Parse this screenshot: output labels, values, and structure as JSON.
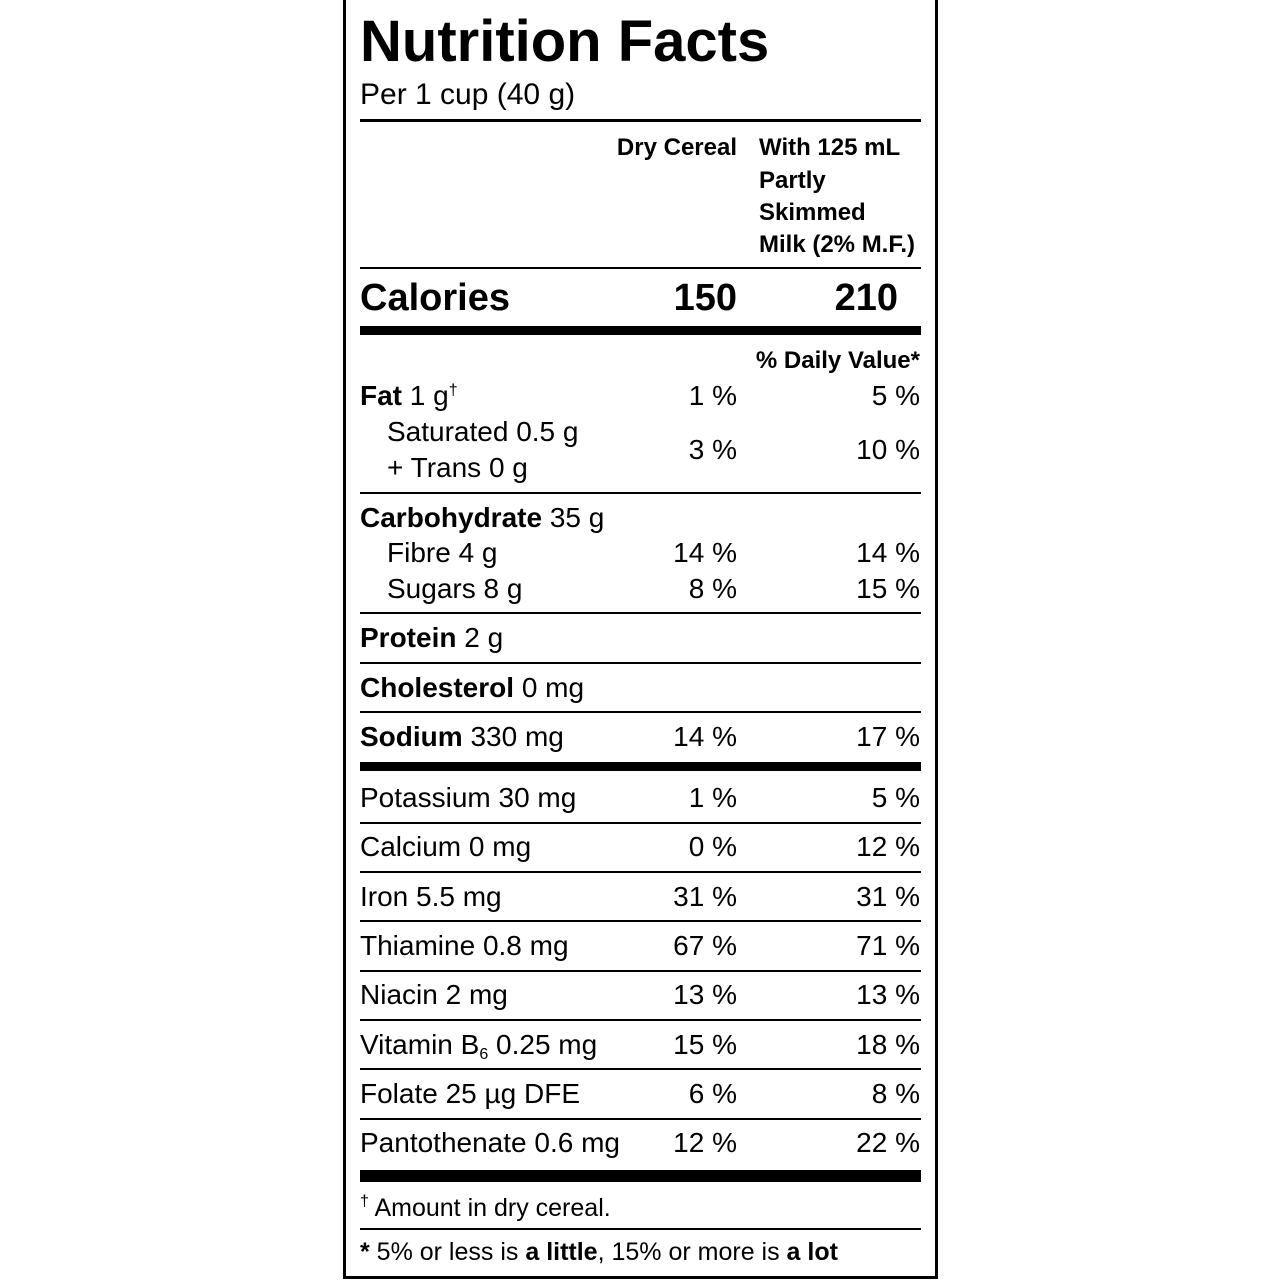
{
  "title": "Nutrition Facts",
  "serving": "Per 1 cup (40 g)",
  "columns": {
    "col1": "Dry Cereal",
    "col2_lines": [
      "With 125 mL",
      "Partly",
      "Skimmed",
      "Milk (2% M.F.)"
    ]
  },
  "calories": {
    "label": "Calories",
    "dry": "150",
    "milk": "210"
  },
  "daily_value_header": "% Daily Value*",
  "nutrients": {
    "fat": {
      "name": "Fat",
      "amount": "1 g",
      "mark": "†",
      "dry": "1 %",
      "milk": "5 %"
    },
    "saturated": {
      "name": "Saturated 0.5 g",
      "name2": "+ Trans 0 g",
      "dry": "3 %",
      "milk": "10 %"
    },
    "carbohydrate": {
      "name": "Carbohydrate",
      "amount": "35 g"
    },
    "fibre": {
      "name": "Fibre 4 g",
      "dry": "14 %",
      "milk": "14 %"
    },
    "sugars": {
      "name": "Sugars 8 g",
      "dry": "8 %",
      "milk": "15 %"
    },
    "protein": {
      "name": "Protein",
      "amount": "2 g"
    },
    "cholesterol": {
      "name": "Cholesterol",
      "amount": "0 mg"
    },
    "sodium": {
      "name": "Sodium",
      "amount": "330 mg",
      "dry": "14 %",
      "milk": "17 %"
    }
  },
  "micros": [
    {
      "name": "Potassium 30 mg",
      "dry": "1 %",
      "milk": "5 %"
    },
    {
      "name": "Calcium 0 mg",
      "dry": "0 %",
      "milk": "12 %"
    },
    {
      "name": "Iron 5.5 mg",
      "dry": "31 %",
      "milk": "31 %"
    },
    {
      "name": "Thiamine 0.8 mg",
      "dry": "67 %",
      "milk": "71 %"
    },
    {
      "name": "Niacin 2 mg",
      "dry": "13 %",
      "milk": "13 %"
    },
    {
      "name": "Vitamin B",
      "sub": "6",
      "amount": " 0.25 mg",
      "dry": "15 %",
      "milk": "18 %"
    },
    {
      "name": "Folate 25 µg DFE",
      "dry": "6 %",
      "milk": "8 %"
    },
    {
      "name": "Pantothenate 0.6 mg",
      "dry": "12 %",
      "milk": "22 %"
    }
  ],
  "footnotes": {
    "dagger_mark": "†",
    "dagger_text": " Amount in dry cereal.",
    "star_mark": "*",
    "part1": " 5% or less is ",
    "bold1": "a little",
    "part2": ", 15% or more is ",
    "bold2": "a lot"
  }
}
